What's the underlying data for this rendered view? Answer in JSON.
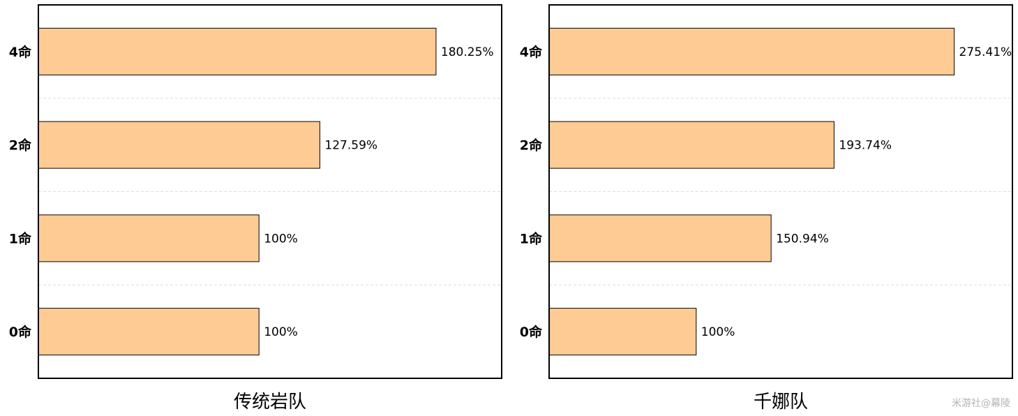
{
  "colors": {
    "bar": "#fecb94",
    "edge": "#000000",
    "grid": "#dcdcdc"
  },
  "watermark": "米游社@幕陵",
  "chart_data": [
    {
      "type": "bar",
      "orientation": "horizontal",
      "title": "",
      "xlabel": "传统岩队",
      "categories": [
        "4命",
        "2命",
        "1命",
        "0命"
      ],
      "values": [
        180.25,
        127.59,
        100,
        100
      ],
      "value_labels": [
        "180.25%",
        "127.59%",
        "100%",
        "100%"
      ],
      "xlim": [
        0,
        210
      ],
      "grid": "horizontal dashed separators"
    },
    {
      "type": "bar",
      "orientation": "horizontal",
      "title": "",
      "xlabel": "千娜队",
      "categories": [
        "4命",
        "2命",
        "1命",
        "0命"
      ],
      "values": [
        275.41,
        193.74,
        150.94,
        100
      ],
      "value_labels": [
        "275.41%",
        "193.74%",
        "150.94%",
        "100%"
      ],
      "xlim": [
        0,
        315
      ],
      "grid": "horizontal dashed separators"
    }
  ]
}
